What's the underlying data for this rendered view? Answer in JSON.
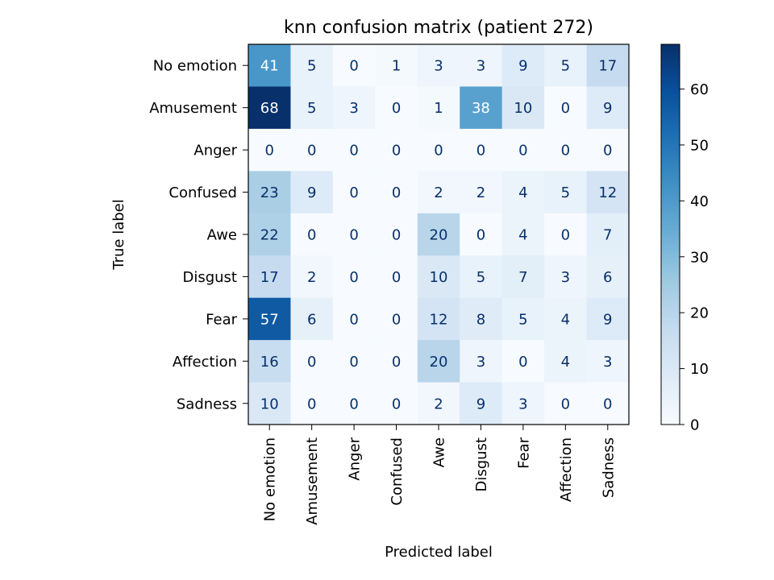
{
  "chart_data": {
    "type": "heatmap",
    "title": "knn confusion matrix (patient 272)",
    "xlabel": "Predicted label",
    "ylabel": "True label",
    "x_categories": [
      "No emotion",
      "Amusement",
      "Anger",
      "Confused",
      "Awe",
      "Disgust",
      "Fear",
      "Affection",
      "Sadness"
    ],
    "y_categories": [
      "No emotion",
      "Amusement",
      "Anger",
      "Confused",
      "Awe",
      "Disgust",
      "Fear",
      "Affection",
      "Sadness"
    ],
    "values": [
      [
        41,
        5,
        0,
        1,
        3,
        3,
        9,
        5,
        17
      ],
      [
        68,
        5,
        3,
        0,
        1,
        38,
        10,
        0,
        9
      ],
      [
        0,
        0,
        0,
        0,
        0,
        0,
        0,
        0,
        0
      ],
      [
        23,
        9,
        0,
        0,
        2,
        2,
        4,
        5,
        12
      ],
      [
        22,
        0,
        0,
        0,
        20,
        0,
        4,
        0,
        7
      ],
      [
        17,
        2,
        0,
        0,
        10,
        5,
        7,
        3,
        6
      ],
      [
        57,
        6,
        0,
        0,
        12,
        8,
        5,
        4,
        9
      ],
      [
        16,
        0,
        0,
        0,
        20,
        3,
        0,
        4,
        3
      ],
      [
        10,
        0,
        0,
        0,
        2,
        9,
        3,
        0,
        0
      ]
    ],
    "colorbar": {
      "min": 0,
      "max": 68,
      "ticks": [
        0,
        10,
        20,
        30,
        40,
        50,
        60
      ],
      "colormap": "Blues"
    }
  }
}
